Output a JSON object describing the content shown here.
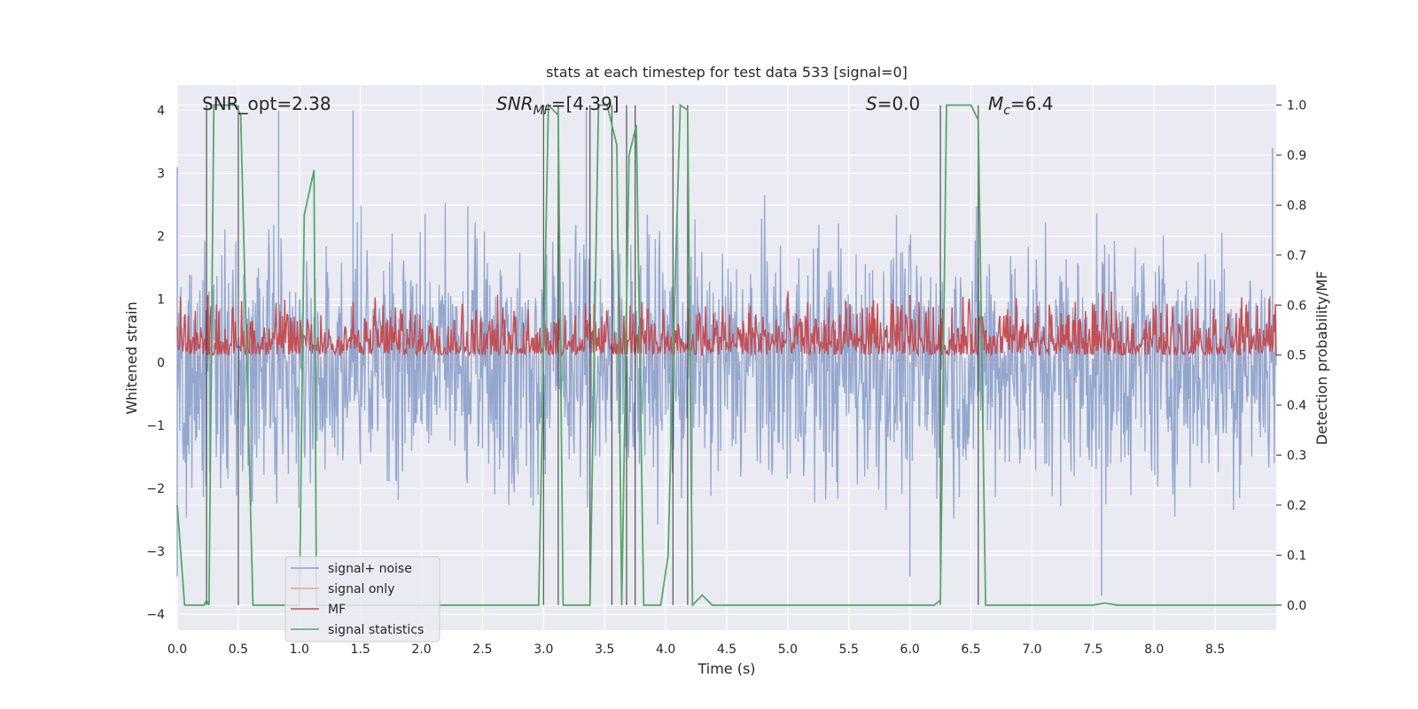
{
  "chart_data": {
    "type": "line",
    "title": "stats at each timestep for test data 533 [signal=0]",
    "xlabel": "Time (s)",
    "ylabel": "Whitened strain",
    "ylabel_right": "Detection probability/MF",
    "xlim": [
      0.0,
      9.0
    ],
    "ylim": [
      -4.25,
      4.4
    ],
    "ylim_right": [
      -0.05,
      1.04
    ],
    "x_ticks": [
      0.0,
      0.5,
      1.0,
      1.5,
      2.0,
      2.5,
      3.0,
      3.5,
      4.0,
      4.5,
      5.0,
      5.5,
      6.0,
      6.5,
      7.0,
      7.5,
      8.0,
      8.5
    ],
    "x_tick_labels": [
      "0.0",
      "0.5",
      "1.0",
      "1.5",
      "2.0",
      "2.5",
      "3.0",
      "3.5",
      "4.0",
      "4.5",
      "5.0",
      "5.5",
      "6.0",
      "6.5",
      "7.0",
      "7.5",
      "8.0",
      "8.5"
    ],
    "y_ticks": [
      4,
      3,
      2,
      1,
      0,
      -1,
      -2,
      -3,
      -4
    ],
    "y_tick_labels": [
      "4",
      "3",
      "2",
      "1",
      "0",
      "−1",
      "−2",
      "−3",
      "−4"
    ],
    "y_ticks_right": [
      1.0,
      0.9,
      0.8,
      0.7,
      0.6,
      0.5,
      0.4,
      0.3,
      0.2,
      0.1,
      0.0
    ],
    "y_tick_labels_right": [
      "1.0",
      "0.9",
      "0.8",
      "0.7",
      "0.6",
      "0.5",
      "0.4",
      "0.3",
      "0.2",
      "0.1",
      "0.0"
    ],
    "annotations": {
      "snr_opt": "SNR_opt=2.38",
      "snr_mf_main": "SNR",
      "snr_mf_sub": "MF",
      "snr_mf_value": "=[4.39]",
      "s_main": "S",
      "s_value": "=0.0",
      "mc_main": "M",
      "mc_sub": "c",
      "mc_value": "=6.4"
    },
    "legend": {
      "placement": "lower-left",
      "entries": [
        {
          "label": "signal+ noise",
          "color": "#8fa3cc"
        },
        {
          "label": "signal only",
          "color": "#e6a58a"
        },
        {
          "label": "MF",
          "color": "#c44e52"
        },
        {
          "label": "signal statistics",
          "color": "#55a868"
        }
      ]
    },
    "series": [
      {
        "name": "signal statistics",
        "axis": "right",
        "color": "#55a868",
        "x": [
          0.0,
          0.06,
          0.22,
          0.24,
          0.26,
          0.3,
          0.48,
          0.52,
          0.62,
          1.0,
          1.04,
          1.12,
          1.14,
          1.2,
          2.96,
          3.04,
          3.12,
          3.16,
          3.38,
          3.45,
          3.52,
          3.6,
          3.64,
          3.7,
          3.76,
          3.82,
          3.96,
          4.02,
          4.06,
          4.12,
          4.18,
          4.22,
          4.3,
          4.38,
          4.5,
          6.2,
          6.25,
          6.3,
          6.5,
          6.56,
          6.62,
          6.7,
          7.5,
          7.6,
          7.7,
          9.0
        ],
        "values": [
          0.2,
          0.0,
          0.0,
          0.01,
          0.0,
          1.0,
          1.0,
          0.98,
          0.0,
          0.0,
          0.78,
          0.87,
          0.0,
          0.0,
          0.0,
          1.0,
          0.98,
          0.0,
          0.0,
          1.0,
          1.0,
          0.92,
          0.0,
          0.9,
          0.96,
          0.0,
          0.0,
          0.1,
          0.5,
          1.0,
          0.99,
          0.0,
          0.02,
          0.0,
          0.0,
          0.0,
          0.01,
          1.0,
          1.0,
          0.97,
          0.0,
          0.0,
          0.0,
          0.004,
          0.0,
          0.0
        ]
      },
      {
        "name": "MF",
        "axis": "right",
        "color": "#c44e52",
        "band": [
          0.5,
          0.63
        ],
        "peaks": [
          {
            "x": 0.25,
            "value": 0.62
          },
          {
            "x": 6.0,
            "value": 0.62
          }
        ]
      },
      {
        "name": "signal+ noise",
        "axis": "left",
        "color": "#8fa3cc",
        "envelope": [
          -3.6,
          3.5
        ],
        "extremes": [
          {
            "x": 0.0,
            "value": 3.1
          },
          {
            "x": 0.0,
            "value": -3.4
          },
          {
            "x": 0.83,
            "value": 4.0
          },
          {
            "x": 1.44,
            "value": 4.0
          },
          {
            "x": 3.35,
            "value": 4.0
          },
          {
            "x": 6.0,
            "value": -3.4
          },
          {
            "x": 7.57,
            "value": -3.7
          },
          {
            "x": 8.97,
            "value": 3.4
          }
        ]
      },
      {
        "name": "signal only",
        "axis": "left",
        "color": "#e6a58a",
        "flat_value": 0.0
      }
    ],
    "vertical_lines": [
      0.24,
      0.5,
      3.0,
      3.12,
      3.38,
      3.56,
      3.68,
      3.75,
      4.06,
      4.18,
      6.25,
      6.56
    ]
  }
}
